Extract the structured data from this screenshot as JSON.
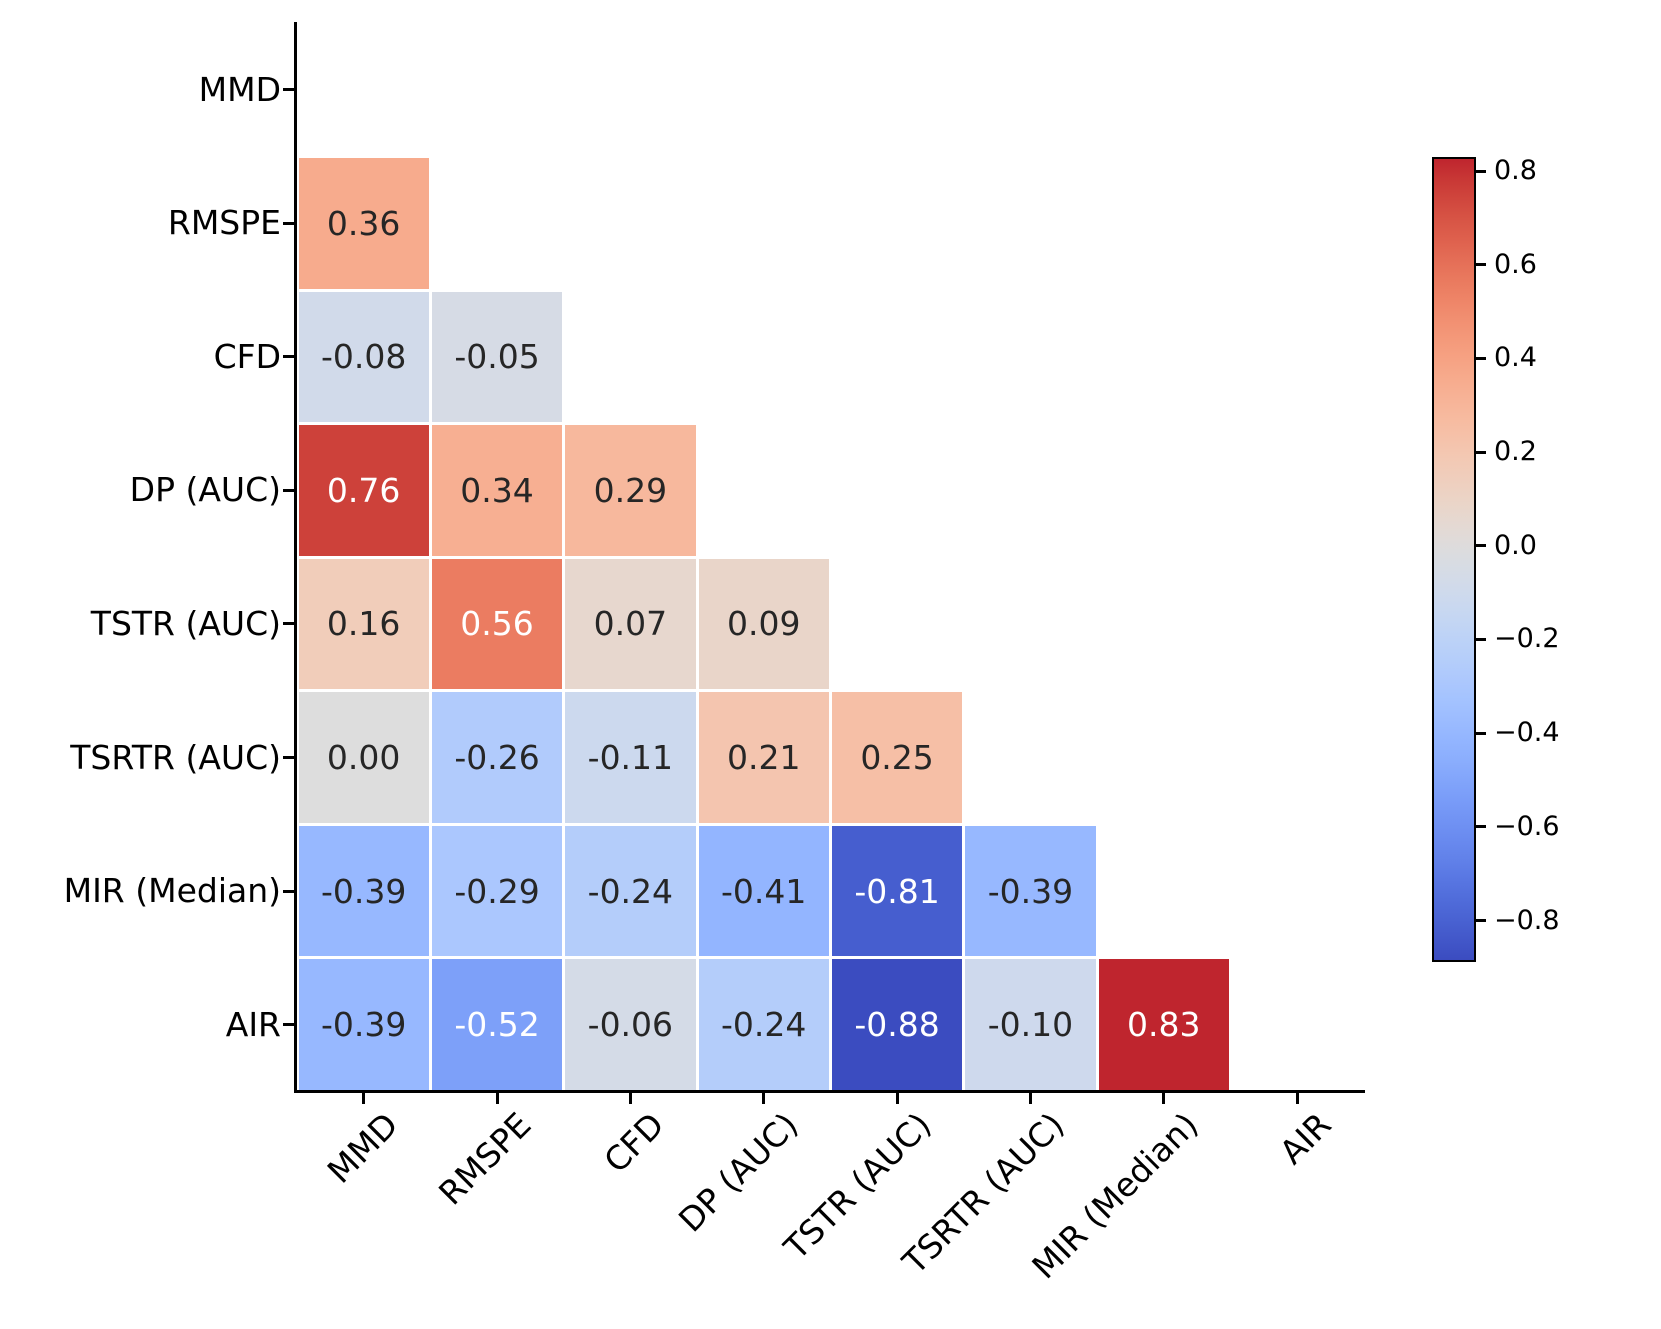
{
  "chart_data": {
    "type": "heatmap",
    "subtype": "lower-triangular-correlation-matrix",
    "labels": [
      "MMD",
      "RMSPE",
      "CFD",
      "DP (AUC)",
      "TSTR (AUC)",
      "TSRTR (AUC)",
      "MIR (Median)",
      "AIR"
    ],
    "rows": [
      {
        "label": "MMD",
        "values": []
      },
      {
        "label": "RMSPE",
        "values": [
          0.36
        ]
      },
      {
        "label": "CFD",
        "values": [
          -0.08,
          -0.05
        ]
      },
      {
        "label": "DP (AUC)",
        "values": [
          0.76,
          0.34,
          0.29
        ]
      },
      {
        "label": "TSTR (AUC)",
        "values": [
          0.16,
          0.56,
          0.07,
          0.09
        ]
      },
      {
        "label": "TSRTR (AUC)",
        "values": [
          0.0,
          -0.26,
          -0.11,
          0.21,
          0.25
        ]
      },
      {
        "label": "MIR (Median)",
        "values": [
          -0.39,
          -0.29,
          -0.24,
          -0.41,
          -0.81,
          -0.39
        ]
      },
      {
        "label": "AIR",
        "values": [
          -0.39,
          -0.52,
          -0.06,
          -0.24,
          -0.88,
          -0.1,
          0.83
        ]
      }
    ],
    "value_format_decimals": 2,
    "colormap": {
      "name": "coolwarm",
      "low": "#3b4cc0",
      "mid": "#dddddd",
      "high": "#b40426"
    },
    "color_scale": {
      "vmin": -0.88,
      "vmax": 0.83,
      "center": 0
    },
    "annotation_text_colors": {
      "dark": "#262626",
      "light": "#ffffff"
    },
    "colorbar": {
      "tick_values": [
        0.8,
        0.6,
        0.4,
        0.2,
        0.0,
        -0.2,
        -0.4,
        -0.6,
        -0.8
      ],
      "tick_labels": [
        "0.8",
        "0.6",
        "0.4",
        "0.2",
        "0.0",
        "−0.2",
        "−0.4",
        "−0.6",
        "−0.8"
      ]
    },
    "grid": false,
    "legend_position": "right-colorbar",
    "title": "",
    "xlabel": "",
    "ylabel": ""
  }
}
